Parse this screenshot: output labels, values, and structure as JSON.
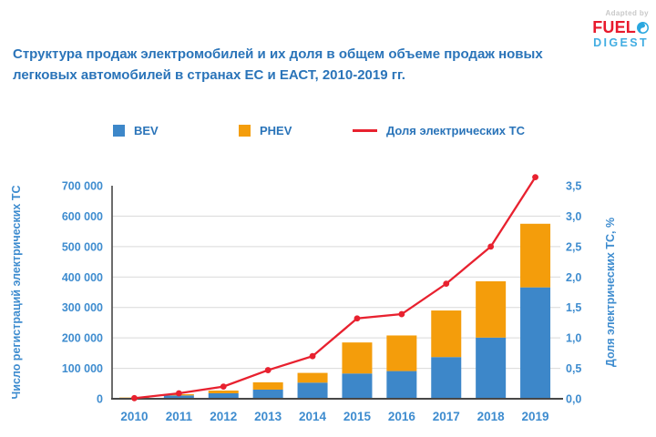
{
  "logo": {
    "adapted_by": "Adapted by",
    "brand_top": "FUEL",
    "brand_bottom": "DIGEST",
    "colors": {
      "adapted": "#c9c9c9",
      "fuel": "#e8192c",
      "digest": "#41ade2",
      "icon": "#2aa7df"
    }
  },
  "title": "Структура продаж электромобилей и их доля в общем объеме продаж новых легковых автомобилей в странах ЕС и ЕАСТ, 2010-2019 гг.",
  "legend": [
    {
      "label": "BEV",
      "swatch": "square",
      "color": "#3d87c9"
    },
    {
      "label": "PHEV",
      "swatch": "square",
      "color": "#f49d0b"
    },
    {
      "label": "Доля электрических ТС",
      "swatch": "line",
      "color": "#e8212f"
    }
  ],
  "axes": {
    "left_title": "Число регистраций электрических ТС",
    "right_title": "Доля электрических ТС, %",
    "left_ticks": [
      "0",
      "100 000",
      "200 000",
      "300 000",
      "400 000",
      "500 000",
      "600 000",
      "700 000"
    ],
    "right_ticks": [
      "0,0",
      "0,5",
      "1,0",
      "1,5",
      "2,0",
      "2,5",
      "3,0",
      "3,5"
    ],
    "x_ticks": [
      "2010",
      "2011",
      "2012",
      "2013",
      "2014",
      "2015",
      "2016",
      "2017",
      "2018",
      "2019"
    ]
  },
  "style": {
    "grid": "#d9d9d9",
    "axis": "#474747",
    "tick": "#3e8ccf",
    "title_text": "#2a74b9"
  },
  "chart_data": {
    "type": "bar",
    "subtype": "stacked-bars-with-line",
    "title": "Структура продаж электромобилей и их доля в общем объеме продаж новых легковых автомобилей в странах ЕС и ЕАСТ, 2010-2019 гг.",
    "categories": [
      "2010",
      "2011",
      "2012",
      "2013",
      "2014",
      "2015",
      "2016",
      "2017",
      "2018",
      "2019"
    ],
    "series": [
      {
        "name": "BEV",
        "type": "bar",
        "stack": "ev",
        "axis": "left",
        "color": "#3d87c9",
        "values": [
          3000,
          11000,
          18000,
          30000,
          53000,
          83000,
          91000,
          137000,
          201000,
          366000
        ]
      },
      {
        "name": "PHEV",
        "type": "bar",
        "stack": "ev",
        "axis": "left",
        "color": "#f49d0b",
        "values": [
          1000,
          4000,
          9000,
          24000,
          32000,
          102000,
          117000,
          153000,
          185000,
          209000
        ]
      },
      {
        "name": "Доля электрических ТС",
        "type": "line",
        "axis": "right",
        "color": "#e8212f",
        "values": [
          0.01,
          0.09,
          0.2,
          0.47,
          0.7,
          1.32,
          1.39,
          1.89,
          2.5,
          3.64
        ]
      }
    ],
    "ylabel_left": "Число регистраций электрических ТС",
    "ylabel_right": "Доля электрических ТС, %",
    "ylim_left": [
      0,
      700000
    ],
    "ylim_right": [
      0,
      3.5
    ],
    "ytick_step_left": 100000,
    "ytick_step_right": 0.5,
    "grid": "horizontal",
    "legend_position": "top"
  }
}
